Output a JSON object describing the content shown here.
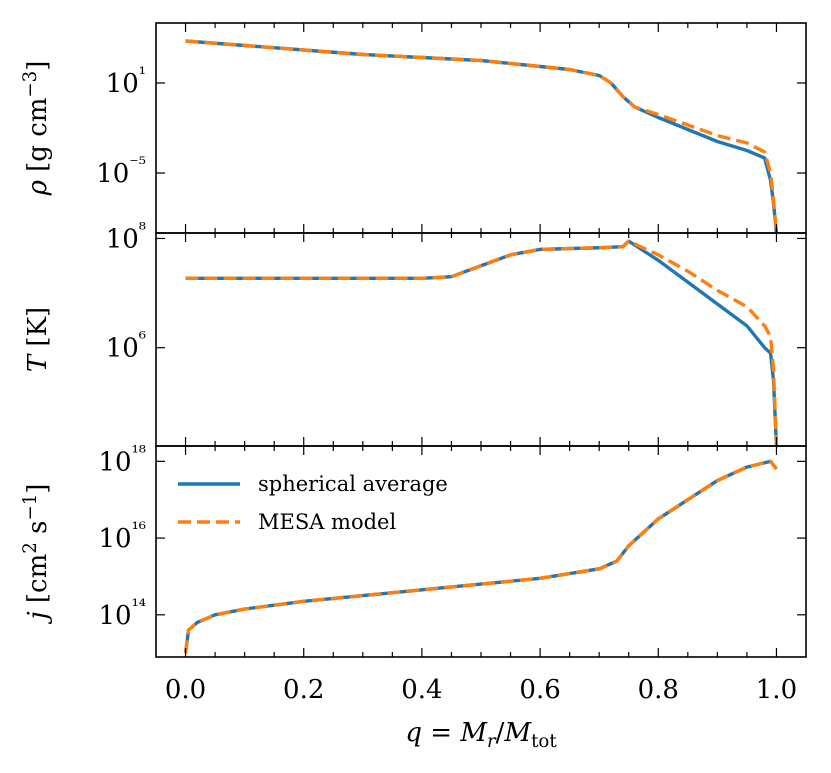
{
  "chart_data": [
    {
      "type": "line",
      "panel": "density",
      "ylabel": "ρ [g cm⁻³]",
      "yscale": "log",
      "ylim": [
        -9,
        5
      ],
      "y_ticks": [
        {
          "value": 1,
          "label": "10¹"
        },
        {
          "value": -5,
          "label": "10⁻⁵"
        }
      ],
      "xlim": [
        -0.05,
        1.05
      ],
      "series": [
        {
          "name": "spherical average",
          "x": [
            0.0,
            0.1,
            0.2,
            0.3,
            0.4,
            0.5,
            0.6,
            0.65,
            0.7,
            0.72,
            0.74,
            0.76,
            0.8,
            0.85,
            0.9,
            0.95,
            0.98,
            0.99,
            0.995,
            1.0
          ],
          "y": [
            3.8,
            3.5,
            3.2,
            2.9,
            2.7,
            2.5,
            2.1,
            1.9,
            1.5,
            1.0,
            0.1,
            -0.6,
            -1.3,
            -2.1,
            -2.9,
            -3.5,
            -4.0,
            -5.5,
            -7.0,
            -9.0
          ]
        },
        {
          "name": "MESA model",
          "x": [
            0.0,
            0.1,
            0.2,
            0.3,
            0.4,
            0.5,
            0.6,
            0.65,
            0.7,
            0.72,
            0.74,
            0.76,
            0.8,
            0.85,
            0.9,
            0.95,
            0.98,
            0.99,
            0.995,
            1.0
          ],
          "y": [
            3.8,
            3.5,
            3.2,
            2.9,
            2.7,
            2.5,
            2.1,
            1.9,
            1.5,
            1.0,
            0.1,
            -0.6,
            -1.1,
            -1.8,
            -2.5,
            -3.0,
            -3.6,
            -5.0,
            -6.8,
            -9.0
          ]
        }
      ]
    },
    {
      "type": "line",
      "panel": "temperature",
      "ylabel": "T [K]",
      "yscale": "log",
      "ylim": [
        4.2,
        8.1
      ],
      "y_ticks": [
        {
          "value": 8,
          "label": "10⁸"
        },
        {
          "value": 6,
          "label": "10⁶"
        }
      ],
      "xlim": [
        -0.05,
        1.05
      ],
      "series": [
        {
          "name": "spherical average",
          "x": [
            0.0,
            0.2,
            0.4,
            0.45,
            0.5,
            0.55,
            0.6,
            0.7,
            0.74,
            0.75,
            0.8,
            0.85,
            0.9,
            0.95,
            0.98,
            0.99,
            0.995,
            1.0
          ],
          "y": [
            7.27,
            7.27,
            7.27,
            7.3,
            7.5,
            7.7,
            7.8,
            7.83,
            7.85,
            7.95,
            7.6,
            7.2,
            6.8,
            6.4,
            6.0,
            5.9,
            5.4,
            4.2
          ]
        },
        {
          "name": "MESA model",
          "x": [
            0.0,
            0.2,
            0.4,
            0.45,
            0.5,
            0.55,
            0.6,
            0.7,
            0.74,
            0.75,
            0.8,
            0.85,
            0.9,
            0.95,
            0.98,
            0.99,
            0.995,
            1.0
          ],
          "y": [
            7.27,
            7.27,
            7.27,
            7.3,
            7.5,
            7.7,
            7.8,
            7.83,
            7.85,
            7.95,
            7.7,
            7.4,
            7.05,
            6.75,
            6.4,
            6.2,
            5.6,
            4.2
          ]
        }
      ]
    },
    {
      "type": "line",
      "panel": "angular momentum",
      "ylabel": "j [cm² s⁻¹]",
      "yscale": "log",
      "ylim": [
        12.9,
        18.4
      ],
      "y_ticks": [
        {
          "value": 18,
          "label": "10¹⁸"
        },
        {
          "value": 16,
          "label": "10¹⁶"
        },
        {
          "value": 14,
          "label": "10¹⁴"
        }
      ],
      "xlim": [
        -0.05,
        1.05
      ],
      "legend": "upper-left",
      "series": [
        {
          "name": "spherical average",
          "x": [
            0.0,
            0.005,
            0.02,
            0.05,
            0.1,
            0.2,
            0.3,
            0.4,
            0.5,
            0.6,
            0.7,
            0.73,
            0.75,
            0.8,
            0.85,
            0.9,
            0.95,
            0.99,
            1.0
          ],
          "y": [
            13.0,
            13.6,
            13.8,
            14.0,
            14.15,
            14.35,
            14.5,
            14.65,
            14.8,
            14.95,
            15.2,
            15.4,
            15.8,
            16.5,
            17.0,
            17.5,
            17.85,
            18.0,
            17.8
          ]
        },
        {
          "name": "MESA model",
          "x": [
            0.0,
            0.005,
            0.02,
            0.05,
            0.1,
            0.2,
            0.3,
            0.4,
            0.5,
            0.6,
            0.7,
            0.73,
            0.75,
            0.8,
            0.85,
            0.9,
            0.95,
            0.99,
            1.0
          ],
          "y": [
            13.0,
            13.6,
            13.8,
            14.0,
            14.15,
            14.35,
            14.5,
            14.65,
            14.8,
            14.95,
            15.2,
            15.4,
            15.8,
            16.5,
            17.0,
            17.5,
            17.85,
            18.0,
            17.8
          ]
        }
      ]
    }
  ],
  "x_axis": {
    "label": "q = M_r/M_tot",
    "ticks": [
      {
        "value": 0.0,
        "label": "0.0"
      },
      {
        "value": 0.2,
        "label": "0.2"
      },
      {
        "value": 0.4,
        "label": "0.4"
      },
      {
        "value": 0.6,
        "label": "0.6"
      },
      {
        "value": 0.8,
        "label": "0.8"
      },
      {
        "value": 1.0,
        "label": "1.0"
      }
    ]
  },
  "legend": {
    "items": [
      {
        "label": "spherical average",
        "color": "#1f77b4",
        "style": "solid"
      },
      {
        "label": "MESA model",
        "color": "#ff7f0e",
        "style": "dashed"
      }
    ]
  },
  "colors": {
    "spherical_average": "#1f77b4",
    "mesa_model": "#ff7f0e"
  }
}
